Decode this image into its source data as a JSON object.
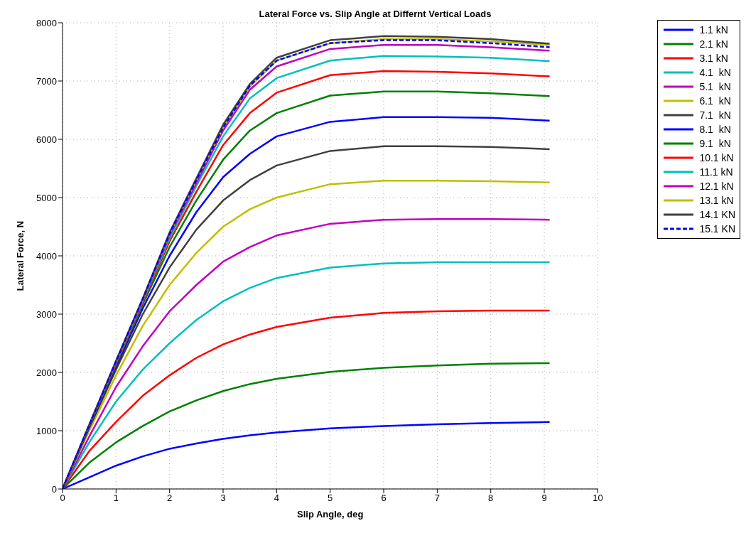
{
  "chart_data": {
    "type": "line",
    "title": "Lateral Force vs. Slip Angle at Differnt Vertical Loads",
    "xlabel": "Slip Angle, deg",
    "ylabel": "Lateral Force, N",
    "x": [
      0,
      0.5,
      1,
      1.5,
      2,
      2.5,
      3,
      3.5,
      4,
      5,
      6,
      7,
      8,
      9.1
    ],
    "xlim": [
      0,
      10
    ],
    "xticks": [
      0,
      1,
      2,
      3,
      4,
      5,
      6,
      7,
      8,
      9,
      10
    ],
    "ylim": [
      0,
      8000
    ],
    "yticks": [
      0,
      1000,
      2000,
      3000,
      4000,
      5000,
      6000,
      7000,
      8000
    ],
    "grid": true,
    "legend": "top right",
    "series": [
      {
        "name": "1.1 kN",
        "color": "#0000ff",
        "values": [
          0,
          200,
          400,
          560,
          690,
          780,
          860,
          920,
          970,
          1040,
          1080,
          1110,
          1130,
          1150
        ]
      },
      {
        "name": "2.1 kN",
        "color": "#008000",
        "values": [
          0,
          450,
          800,
          1080,
          1330,
          1520,
          1680,
          1800,
          1890,
          2010,
          2080,
          2120,
          2150,
          2160
        ]
      },
      {
        "name": "3.1 kN",
        "color": "#ff0000",
        "values": [
          0,
          650,
          1150,
          1600,
          1950,
          2250,
          2480,
          2650,
          2780,
          2940,
          3020,
          3050,
          3060,
          3060
        ]
      },
      {
        "name": "4.1  kN",
        "color": "#00bfbf",
        "values": [
          0,
          800,
          1500,
          2050,
          2500,
          2900,
          3220,
          3450,
          3620,
          3800,
          3870,
          3890,
          3890,
          3890
        ]
      },
      {
        "name": "5.1  kN",
        "color": "#bf00bf",
        "values": [
          0,
          900,
          1750,
          2450,
          3050,
          3500,
          3900,
          4150,
          4350,
          4550,
          4620,
          4630,
          4630,
          4620
        ]
      },
      {
        "name": "6.1  kN",
        "color": "#bfbf00",
        "values": [
          0,
          1000,
          1950,
          2800,
          3500,
          4050,
          4500,
          4800,
          5000,
          5230,
          5290,
          5290,
          5280,
          5260
        ]
      },
      {
        "name": "7.1  kN",
        "color": "#404040",
        "values": [
          0,
          1050,
          2050,
          3000,
          3800,
          4450,
          4950,
          5300,
          5550,
          5800,
          5880,
          5880,
          5870,
          5830
        ]
      },
      {
        "name": "8.1  kN",
        "color": "#0000ff",
        "values": [
          0,
          1070,
          2100,
          3100,
          4000,
          4750,
          5350,
          5750,
          6050,
          6300,
          6380,
          6380,
          6370,
          6320
        ]
      },
      {
        "name": "9.1  kN",
        "color": "#008000",
        "values": [
          0,
          1080,
          2130,
          3170,
          4150,
          4950,
          5650,
          6150,
          6450,
          6750,
          6820,
          6820,
          6790,
          6740
        ]
      },
      {
        "name": "10.1 kN",
        "color": "#ff0000",
        "values": [
          0,
          1090,
          2150,
          3200,
          4250,
          5100,
          5900,
          6450,
          6800,
          7100,
          7170,
          7160,
          7130,
          7080
        ]
      },
      {
        "name": "11.1 kN",
        "color": "#00bfbf",
        "values": [
          0,
          1100,
          2170,
          3230,
          4300,
          5200,
          6050,
          6700,
          7050,
          7350,
          7430,
          7420,
          7400,
          7340
        ]
      },
      {
        "name": "12.1 kN",
        "color": "#bf00bf",
        "values": [
          0,
          1100,
          2180,
          3250,
          4350,
          5250,
          6150,
          6850,
          7250,
          7550,
          7620,
          7620,
          7580,
          7520
        ]
      },
      {
        "name": "13.1 kN",
        "color": "#bfbf00",
        "values": [
          0,
          1100,
          2190,
          3260,
          4380,
          5300,
          6200,
          6900,
          7350,
          7650,
          7720,
          7720,
          7680,
          7620
        ]
      },
      {
        "name": "14.1 KN",
        "color": "#404040",
        "values": [
          0,
          1100,
          2200,
          3270,
          4400,
          5330,
          6250,
          6950,
          7400,
          7700,
          7770,
          7760,
          7720,
          7640
        ]
      },
      {
        "name": "15.1 KN",
        "color": "#0000ff",
        "line_style": "dashed",
        "values": [
          0,
          1100,
          2190,
          3260,
          4380,
          5300,
          6200,
          6920,
          7350,
          7650,
          7700,
          7700,
          7650,
          7580
        ]
      }
    ]
  }
}
